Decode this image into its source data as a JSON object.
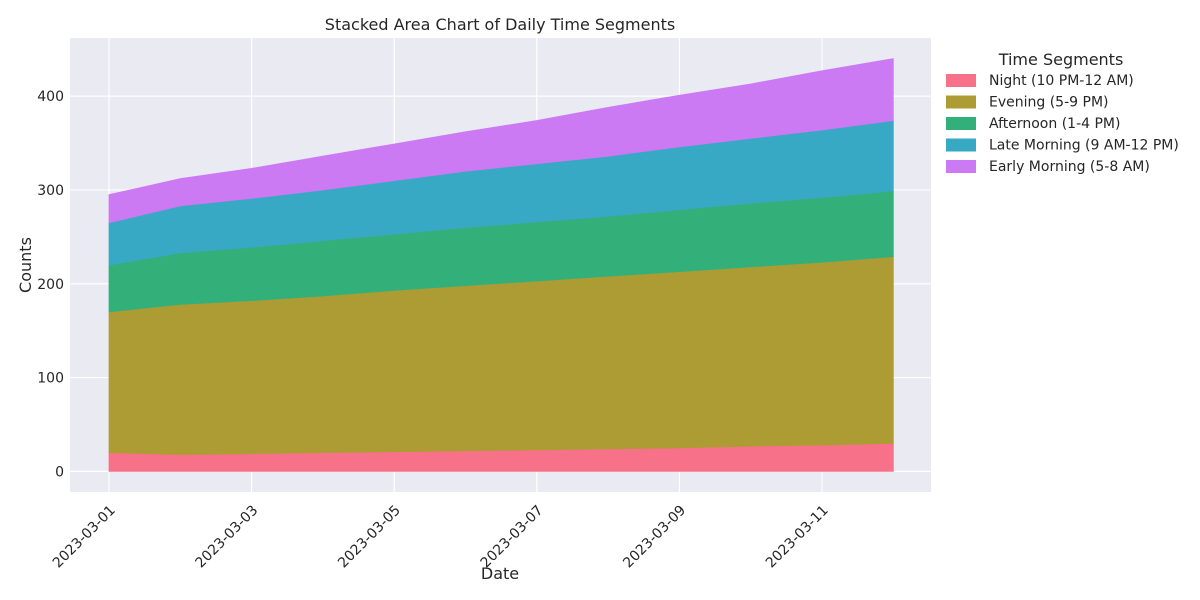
{
  "chart_data": {
    "type": "area",
    "stacked": true,
    "title": "Stacked Area Chart of Daily Time Segments",
    "xlabel": "Date",
    "ylabel": "Counts",
    "x": [
      "2023-03-01",
      "2023-03-02",
      "2023-03-03",
      "2023-03-04",
      "2023-03-05",
      "2023-03-06",
      "2023-03-07",
      "2023-03-08",
      "2023-03-09",
      "2023-03-10",
      "2023-03-11",
      "2023-03-12"
    ],
    "x_ticks": [
      "2023-03-01",
      "2023-03-03",
      "2023-03-05",
      "2023-03-07",
      "2023-03-09",
      "2023-03-11"
    ],
    "ylim": [
      -22,
      462
    ],
    "y_ticks": [
      0,
      100,
      200,
      300,
      400
    ],
    "grid": true,
    "legend_title": "Time Segments",
    "legend_position": "outside top-right",
    "series": [
      {
        "name": "Night (10 PM-12 AM)",
        "color": "#f77189",
        "values": [
          20,
          18,
          19,
          20,
          21,
          22,
          23,
          24,
          25,
          27,
          28,
          30
        ]
      },
      {
        "name": "Evening (5-9 PM)",
        "color": "#ad9c33",
        "values": [
          150,
          160,
          163,
          167,
          172,
          176,
          180,
          184,
          188,
          191,
          195,
          199
        ]
      },
      {
        "name": "Afternoon (1-4 PM)",
        "color": "#33b07a",
        "values": [
          50,
          55,
          57,
          59,
          60,
          62,
          63,
          64,
          66,
          68,
          69,
          70
        ]
      },
      {
        "name": "Late Morning (9 AM-12 PM)",
        "color": "#38a9c5",
        "values": [
          45,
          50,
          52,
          54,
          57,
          60,
          62,
          64,
          67,
          69,
          72,
          75
        ]
      },
      {
        "name": "Early Morning (5-8 AM)",
        "color": "#cc79f4",
        "values": [
          30,
          29,
          32,
          36,
          39,
          42,
          46,
          52,
          55,
          58,
          63,
          66
        ]
      }
    ]
  }
}
